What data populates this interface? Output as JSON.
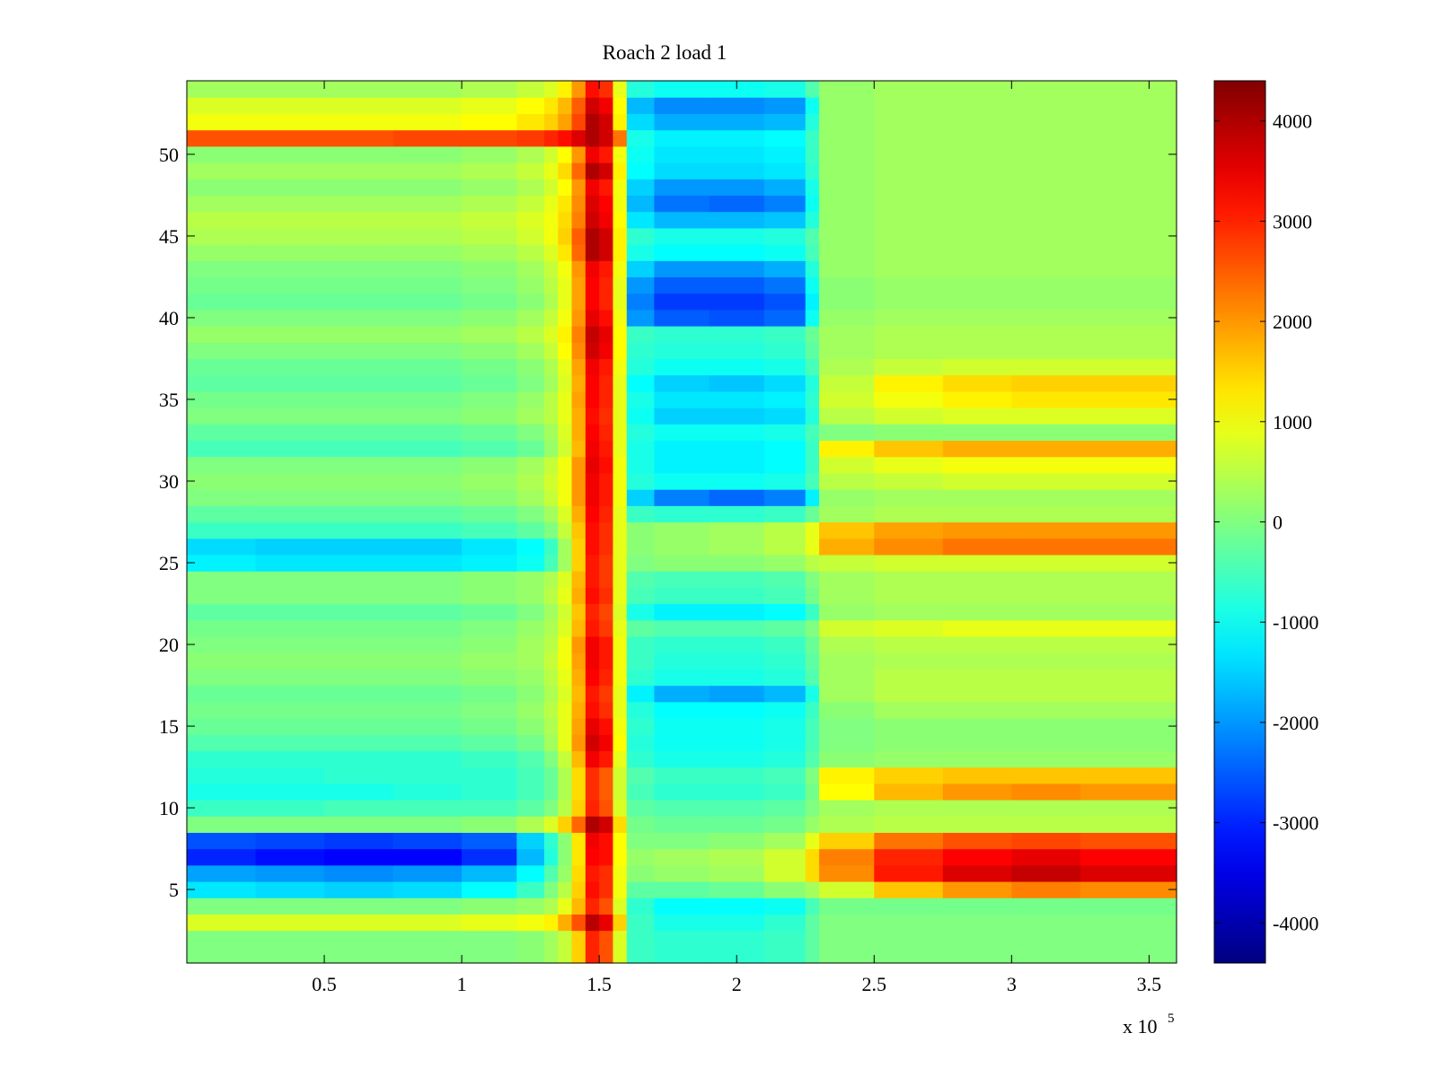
{
  "chart_data": {
    "type": "heatmap",
    "title": "Roach 2 load 1",
    "xlabel": "",
    "ylabel": "",
    "x_multiplier_label": "x 10",
    "x_multiplier_exponent": "5",
    "x_range": [
      0,
      3.6
    ],
    "y_range": [
      0.5,
      54.5
    ],
    "x_ticks": [
      0.5,
      1,
      1.5,
      2,
      2.5,
      3,
      3.5
    ],
    "x_tick_labels": [
      "0.5",
      "1",
      "1.5",
      "2",
      "2.5",
      "3",
      "3.5"
    ],
    "y_ticks": [
      5,
      10,
      15,
      20,
      25,
      30,
      35,
      40,
      45,
      50
    ],
    "y_tick_labels": [
      "5",
      "10",
      "15",
      "20",
      "25",
      "30",
      "35",
      "40",
      "45",
      "50"
    ],
    "colorbar": {
      "range": [
        -4400,
        4400
      ],
      "ticks": [
        -4000,
        -3000,
        -2000,
        -1000,
        0,
        1000,
        2000,
        3000,
        4000
      ],
      "tick_labels": [
        "-4000",
        "-3000",
        "-2000",
        "-1000",
        "0",
        "1000",
        "2000",
        "3000",
        "4000"
      ],
      "colormap": "jet"
    },
    "rows": 54,
    "x_segments_x1e5": [
      0,
      0.25,
      0.5,
      0.75,
      1,
      1.2,
      1.3,
      1.35,
      1.4,
      1.45,
      1.5,
      1.55,
      1.6,
      1.7,
      1.9,
      2.1,
      2.25,
      2.3,
      2.5,
      2.75,
      3,
      3.25,
      3.6
    ],
    "z": [
      [
        0,
        0,
        0,
        0,
        0,
        100,
        300,
        600,
        1500,
        3000,
        2600,
        800,
        -600,
        -700,
        -700,
        -600,
        -300,
        0,
        0,
        0,
        0,
        0
      ],
      [
        0,
        0,
        0,
        0,
        0,
        100,
        300,
        600,
        1500,
        3000,
        2600,
        800,
        -600,
        -700,
        -700,
        -600,
        -300,
        0,
        0,
        0,
        0,
        0
      ],
      [
        800,
        800,
        800,
        800,
        900,
        1000,
        1200,
        1800,
        2600,
        3900,
        3500,
        1500,
        -600,
        -900,
        -900,
        -700,
        -300,
        0,
        0,
        0,
        0,
        0
      ],
      [
        0,
        0,
        0,
        0,
        100,
        200,
        400,
        900,
        1700,
        3000,
        2600,
        800,
        -700,
        -1100,
        -1100,
        -1000,
        -500,
        -100,
        -100,
        -100,
        -100,
        -100
      ],
      [
        -1300,
        -1400,
        -1500,
        -1400,
        -1100,
        -600,
        0,
        500,
        1500,
        3200,
        2900,
        1000,
        -300,
        -300,
        -200,
        100,
        300,
        700,
        1600,
        2000,
        2200,
        2100
      ],
      [
        -1900,
        -2000,
        -2100,
        -2000,
        -1700,
        -1100,
        -400,
        200,
        1400,
        3100,
        2900,
        1000,
        100,
        200,
        300,
        700,
        1400,
        2100,
        3100,
        3600,
        3800,
        3600
      ],
      [
        -3000,
        -3200,
        -3300,
        -3300,
        -2900,
        -1700,
        -800,
        100,
        1300,
        3300,
        3200,
        1100,
        200,
        300,
        400,
        700,
        1400,
        2200,
        3000,
        3300,
        3500,
        3300
      ],
      [
        -2600,
        -2700,
        -2800,
        -2700,
        -2500,
        -1500,
        -700,
        100,
        1300,
        3400,
        3200,
        1100,
        0,
        0,
        100,
        300,
        900,
        1500,
        2300,
        2600,
        2700,
        2600
      ],
      [
        0,
        0,
        0,
        0,
        100,
        400,
        800,
        1500,
        2400,
        4000,
        3700,
        1400,
        -100,
        -200,
        -200,
        -100,
        200,
        400,
        500,
        500,
        500,
        500
      ],
      [
        -600,
        -600,
        -500,
        -500,
        -500,
        -300,
        0,
        500,
        1500,
        3000,
        2600,
        800,
        -300,
        -400,
        -400,
        -300,
        0,
        300,
        400,
        400,
        400,
        400
      ],
      [
        -900,
        -900,
        -900,
        -800,
        -700,
        -500,
        -200,
        400,
        1400,
        2900,
        2500,
        700,
        -500,
        -700,
        -700,
        -600,
        -100,
        1100,
        1700,
        2000,
        2100,
        2000
      ],
      [
        -800,
        -800,
        -700,
        -700,
        -700,
        -500,
        -200,
        400,
        1400,
        2900,
        2500,
        700,
        -400,
        -600,
        -600,
        -500,
        0,
        1200,
        1500,
        1600,
        1600,
        1600
      ],
      [
        -700,
        -700,
        -700,
        -700,
        -600,
        -400,
        0,
        600,
        1700,
        3400,
        3100,
        900,
        -700,
        -900,
        -900,
        -800,
        -400,
        100,
        200,
        200,
        200,
        200
      ],
      [
        -400,
        -400,
        -400,
        -400,
        -300,
        -100,
        300,
        900,
        2000,
        3700,
        3400,
        1100,
        -800,
        -1000,
        -1000,
        -900,
        -500,
        0,
        100,
        100,
        100,
        100
      ],
      [
        -200,
        -200,
        -200,
        -200,
        -100,
        100,
        400,
        900,
        1900,
        3500,
        3200,
        1000,
        -700,
        -1000,
        -1000,
        -900,
        -500,
        0,
        100,
        100,
        100,
        100
      ],
      [
        -100,
        -100,
        -100,
        -100,
        0,
        200,
        500,
        900,
        1800,
        3200,
        2900,
        900,
        -800,
        -1100,
        -1100,
        -1000,
        -600,
        100,
        300,
        300,
        300,
        300
      ],
      [
        -200,
        -200,
        -200,
        -200,
        -100,
        100,
        400,
        800,
        1700,
        3100,
        2800,
        900,
        -1200,
        -1800,
        -1900,
        -1700,
        -900,
        300,
        500,
        500,
        500,
        500
      ],
      [
        0,
        0,
        0,
        0,
        100,
        200,
        500,
        900,
        1800,
        3300,
        3000,
        1000,
        -700,
        -900,
        -900,
        -800,
        -400,
        300,
        500,
        500,
        500,
        500
      ],
      [
        100,
        100,
        100,
        100,
        200,
        300,
        600,
        1000,
        1900,
        3400,
        3100,
        1000,
        -600,
        -800,
        -800,
        -700,
        -300,
        300,
        400,
        400,
        400,
        400
      ],
      [
        0,
        0,
        0,
        0,
        100,
        300,
        500,
        1000,
        2000,
        3400,
        3100,
        1000,
        -600,
        -700,
        -700,
        -600,
        -200,
        400,
        500,
        500,
        500,
        500
      ],
      [
        -100,
        -100,
        -100,
        -100,
        0,
        200,
        400,
        800,
        1700,
        3100,
        2800,
        900,
        -300,
        -400,
        -400,
        -300,
        0,
        700,
        800,
        900,
        900,
        900
      ],
      [
        -300,
        -300,
        -300,
        -300,
        -200,
        0,
        300,
        700,
        1600,
        3000,
        2700,
        800,
        -900,
        -1200,
        -1200,
        -1100,
        -600,
        200,
        300,
        300,
        300,
        300
      ],
      [
        0,
        0,
        0,
        0,
        100,
        200,
        500,
        900,
        1800,
        3200,
        2900,
        900,
        -500,
        -600,
        -600,
        -500,
        -100,
        300,
        400,
        400,
        400,
        400
      ],
      [
        0,
        0,
        0,
        0,
        100,
        200,
        400,
        800,
        1700,
        3100,
        2800,
        900,
        -400,
        -500,
        -500,
        -400,
        0,
        300,
        400,
        400,
        400,
        400
      ],
      [
        -1200,
        -1300,
        -1300,
        -1300,
        -1200,
        -1000,
        -500,
        300,
        1500,
        3100,
        2800,
        900,
        0,
        100,
        100,
        200,
        500,
        600,
        700,
        700,
        700,
        700
      ],
      [
        -1400,
        -1500,
        -1500,
        -1500,
        -1300,
        -1100,
        -600,
        300,
        1500,
        3200,
        2900,
        900,
        100,
        200,
        300,
        500,
        900,
        1800,
        2100,
        2300,
        2300,
        2300
      ],
      [
        -600,
        -600,
        -600,
        -600,
        -500,
        -300,
        0,
        600,
        1600,
        3200,
        2900,
        900,
        100,
        200,
        300,
        500,
        900,
        1600,
        1900,
        2000,
        2000,
        2000
      ],
      [
        -300,
        -300,
        -300,
        -300,
        -200,
        0,
        300,
        800,
        1800,
        3300,
        3000,
        900,
        -600,
        -700,
        -700,
        -600,
        -200,
        300,
        400,
        400,
        400,
        400
      ],
      [
        0,
        0,
        0,
        0,
        100,
        300,
        600,
        1000,
        2000,
        3400,
        3100,
        1000,
        -1500,
        -2200,
        -2400,
        -2200,
        -1200,
        200,
        300,
        300,
        300,
        300
      ],
      [
        100,
        100,
        100,
        100,
        200,
        400,
        700,
        1000,
        2000,
        3400,
        3100,
        1000,
        -800,
        -1000,
        -1000,
        -900,
        -500,
        500,
        600,
        700,
        700,
        700
      ],
      [
        0,
        0,
        0,
        0,
        100,
        300,
        600,
        1000,
        2000,
        3500,
        3200,
        1000,
        -900,
        -1200,
        -1200,
        -1100,
        -600,
        700,
        900,
        1000,
        1000,
        1000
      ],
      [
        -500,
        -500,
        -500,
        -500,
        -400,
        -200,
        200,
        700,
        1700,
        3400,
        3100,
        900,
        -900,
        -1200,
        -1200,
        -1100,
        -600,
        1200,
        1600,
        1800,
        1800,
        1800
      ],
      [
        -300,
        -300,
        -300,
        -300,
        -200,
        0,
        300,
        800,
        1800,
        3300,
        3000,
        900,
        -800,
        -1000,
        -1000,
        -900,
        -500,
        0,
        100,
        100,
        100,
        100
      ],
      [
        0,
        0,
        0,
        0,
        100,
        300,
        500,
        900,
        1800,
        3200,
        2900,
        900,
        -1000,
        -1500,
        -1500,
        -1400,
        -800,
        500,
        700,
        800,
        800,
        800
      ],
      [
        -100,
        -100,
        -100,
        -100,
        0,
        200,
        500,
        900,
        1900,
        3300,
        3000,
        900,
        -900,
        -1300,
        -1300,
        -1200,
        -700,
        700,
        1000,
        1200,
        1300,
        1300
      ],
      [
        -300,
        -300,
        -300,
        -300,
        -200,
        0,
        300,
        800,
        1800,
        3300,
        3000,
        900,
        -1100,
        -1500,
        -1600,
        -1400,
        -800,
        600,
        1200,
        1400,
        1500,
        1500
      ],
      [
        -200,
        -200,
        -200,
        -200,
        -100,
        100,
        400,
        900,
        1900,
        3400,
        3100,
        1000,
        -800,
        -1000,
        -1000,
        -900,
        -500,
        400,
        600,
        700,
        700,
        700
      ],
      [
        0,
        0,
        0,
        0,
        100,
        300,
        600,
        1100,
        2100,
        3700,
        3400,
        1100,
        -700,
        -800,
        -800,
        -700,
        -300,
        300,
        400,
        400,
        400,
        400
      ],
      [
        200,
        200,
        200,
        200,
        300,
        500,
        800,
        1200,
        2200,
        3800,
        3500,
        1100,
        -600,
        -700,
        -700,
        -600,
        -200,
        300,
        400,
        400,
        400,
        400
      ],
      [
        0,
        0,
        0,
        0,
        100,
        300,
        600,
        1000,
        2000,
        3500,
        3200,
        1000,
        -2000,
        -2500,
        -2600,
        -2400,
        -1000,
        200,
        300,
        300,
        300,
        300
      ],
      [
        -200,
        -200,
        -200,
        -200,
        -100,
        100,
        400,
        900,
        1900,
        3300,
        3000,
        900,
        -2200,
        -2800,
        -2800,
        -2600,
        -1200,
        100,
        200,
        200,
        200,
        200
      ],
      [
        -100,
        -100,
        -100,
        -100,
        0,
        200,
        500,
        900,
        1900,
        3300,
        3000,
        900,
        -2000,
        -2500,
        -2500,
        -2300,
        -1000,
        100,
        200,
        200,
        200,
        200
      ],
      [
        0,
        0,
        0,
        0,
        100,
        300,
        600,
        1000,
        2000,
        3400,
        3100,
        1000,
        -1500,
        -2000,
        -2000,
        -1800,
        -800,
        200,
        300,
        300,
        300,
        300
      ],
      [
        200,
        200,
        200,
        200,
        300,
        500,
        800,
        1300,
        2400,
        4000,
        3700,
        1200,
        -900,
        -1100,
        -1100,
        -1000,
        -500,
        200,
        300,
        300,
        300,
        300
      ],
      [
        400,
        400,
        400,
        400,
        500,
        700,
        1000,
        1500,
        2500,
        4000,
        3700,
        1200,
        -700,
        -900,
        -900,
        -800,
        -400,
        200,
        300,
        300,
        300,
        300
      ],
      [
        500,
        500,
        500,
        500,
        600,
        800,
        1000,
        1400,
        2200,
        3700,
        3400,
        1100,
        -1300,
        -1700,
        -1700,
        -1600,
        -800,
        200,
        300,
        300,
        300,
        300
      ],
      [
        300,
        300,
        300,
        300,
        400,
        600,
        900,
        1300,
        2100,
        3600,
        3300,
        1000,
        -1700,
        -2300,
        -2400,
        -2200,
        -1000,
        200,
        300,
        300,
        300,
        300
      ],
      [
        100,
        100,
        100,
        100,
        200,
        400,
        700,
        1100,
        2000,
        3400,
        3100,
        1000,
        -1500,
        -2000,
        -2000,
        -1800,
        -900,
        200,
        300,
        300,
        300,
        300
      ],
      [
        300,
        300,
        300,
        300,
        400,
        600,
        900,
        1400,
        2400,
        4000,
        3700,
        1200,
        -1100,
        -1400,
        -1400,
        -1300,
        -700,
        200,
        300,
        300,
        300,
        300
      ],
      [
        100,
        100,
        100,
        100,
        200,
        400,
        700,
        1100,
        2000,
        3400,
        3100,
        1000,
        -1000,
        -1300,
        -1300,
        -1200,
        -600,
        200,
        300,
        300,
        300,
        300
      ],
      [
        2600,
        2600,
        2600,
        2700,
        2700,
        2800,
        3000,
        3200,
        3600,
        4000,
        3700,
        2300,
        -900,
        -1200,
        -1200,
        -1100,
        -600,
        200,
        300,
        300,
        300,
        300
      ],
      [
        1000,
        1000,
        1000,
        1000,
        1100,
        1300,
        1500,
        1900,
        2700,
        4000,
        3700,
        1200,
        -1400,
        -1800,
        -1800,
        -1700,
        -800,
        200,
        300,
        300,
        300,
        300
      ],
      [
        800,
        800,
        800,
        800,
        900,
        1100,
        1300,
        1700,
        2500,
        3700,
        3400,
        1100,
        -1700,
        -2100,
        -2100,
        -2000,
        -1000,
        200,
        300,
        300,
        300,
        300
      ],
      [
        300,
        300,
        300,
        300,
        400,
        600,
        800,
        1200,
        2000,
        3200,
        2900,
        900,
        -800,
        -1000,
        -1000,
        -900,
        -400,
        200,
        300,
        300,
        300,
        300
      ]
    ]
  }
}
